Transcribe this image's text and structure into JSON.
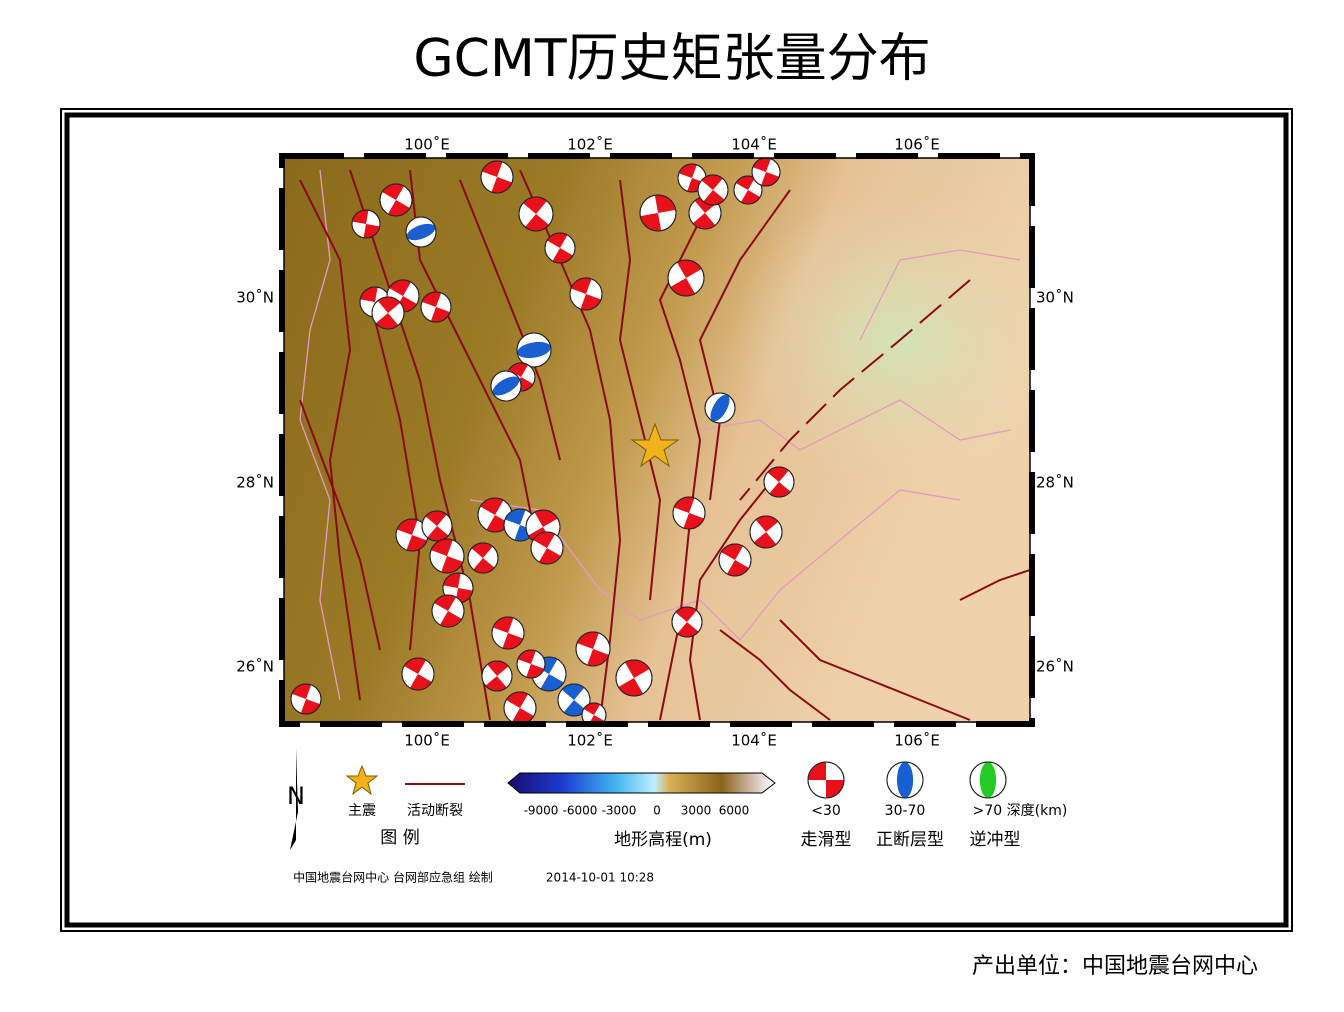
{
  "title": "GCMT历史矩张量分布",
  "map": {
    "lon_labels_top": [
      "100˚E",
      "102˚E",
      "104˚E",
      "106˚E"
    ],
    "lon_labels_bottom": [
      "100˚E",
      "102˚E",
      "104˚E",
      "106˚E"
    ],
    "lat_labels_left": [
      "30˚N",
      "28˚N",
      "26˚N"
    ],
    "lat_labels_right": [
      "30˚N",
      "28˚N",
      "26˚N"
    ]
  },
  "legend": {
    "north": "N",
    "title": "图  例",
    "mainshock": "主震",
    "fault": "活动断裂",
    "colorbar_ticks": [
      "-9000",
      "-6000",
      "-3000",
      "0",
      "3000",
      "6000"
    ],
    "colorbar_label": "地形高程(m)",
    "depths": [
      "<30",
      "30-70",
      ">70 深度(km)"
    ],
    "types": [
      "走滑型",
      "正断层型",
      "逆冲型"
    ]
  },
  "credit": "中国地震台网中心 台网部应急组 绘制",
  "date": "2014-10-01 10:28",
  "footer": "产出单位：中国地震台网中心"
}
